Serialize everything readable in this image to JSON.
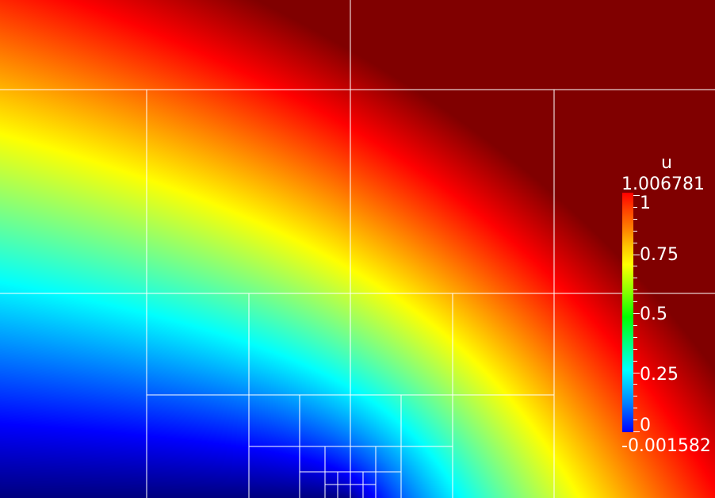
{
  "legend": {
    "title": "u",
    "max": "1.006781",
    "min": "-0.001582",
    "labels": [
      "1",
      "0.75",
      "0.5",
      "0.25",
      "0"
    ]
  },
  "colors": {
    "low": "#0000ff",
    "high": "#ff0000",
    "mesh_lines": "#ffffff"
  }
}
